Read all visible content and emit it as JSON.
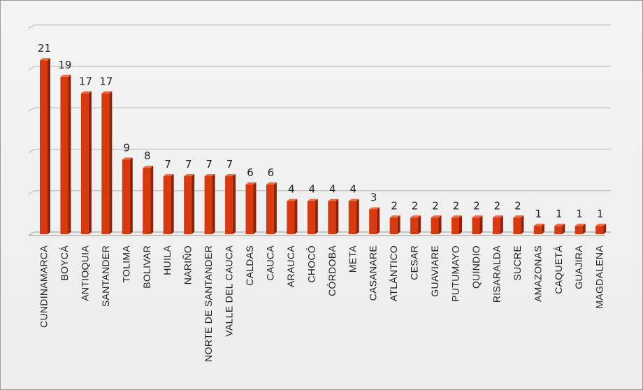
{
  "chart_data": {
    "type": "bar",
    "title": "",
    "xlabel": "",
    "ylabel": "",
    "ylim": [
      0,
      25
    ],
    "grid": true,
    "bar_color": "#d83a10",
    "bar_side_color": "#8e2208",
    "bar_top_color": "#f06a40",
    "categories": [
      "CUNDINAMARCA",
      "BOYCÁ",
      "ANTIOQUIA",
      "SANTANDER",
      "TOLIMA",
      "BOLIVAR",
      "HUILA",
      "NARIÑO",
      "NORTE DE SANTANDER",
      "VALLE DEL CAUCA",
      "CALDAS",
      "CAUCA",
      "ARAUCA",
      "CHOCÓ",
      "CÓRDOBA",
      "META",
      "CASANARE",
      "ATLÁNTICO",
      "CESAR",
      "GUAVIARE",
      "PUTUMAYO",
      "QUINDIO",
      "RISARALDA",
      "SUCRE",
      "AMAZONAS",
      "CAQUETÁ",
      "GUAJIRA",
      "MAGDALENA"
    ],
    "values": [
      21,
      19,
      17,
      17,
      9,
      8,
      7,
      7,
      7,
      7,
      6,
      6,
      4,
      4,
      4,
      4,
      3,
      2,
      2,
      2,
      2,
      2,
      2,
      2,
      1,
      1,
      1,
      1
    ]
  }
}
